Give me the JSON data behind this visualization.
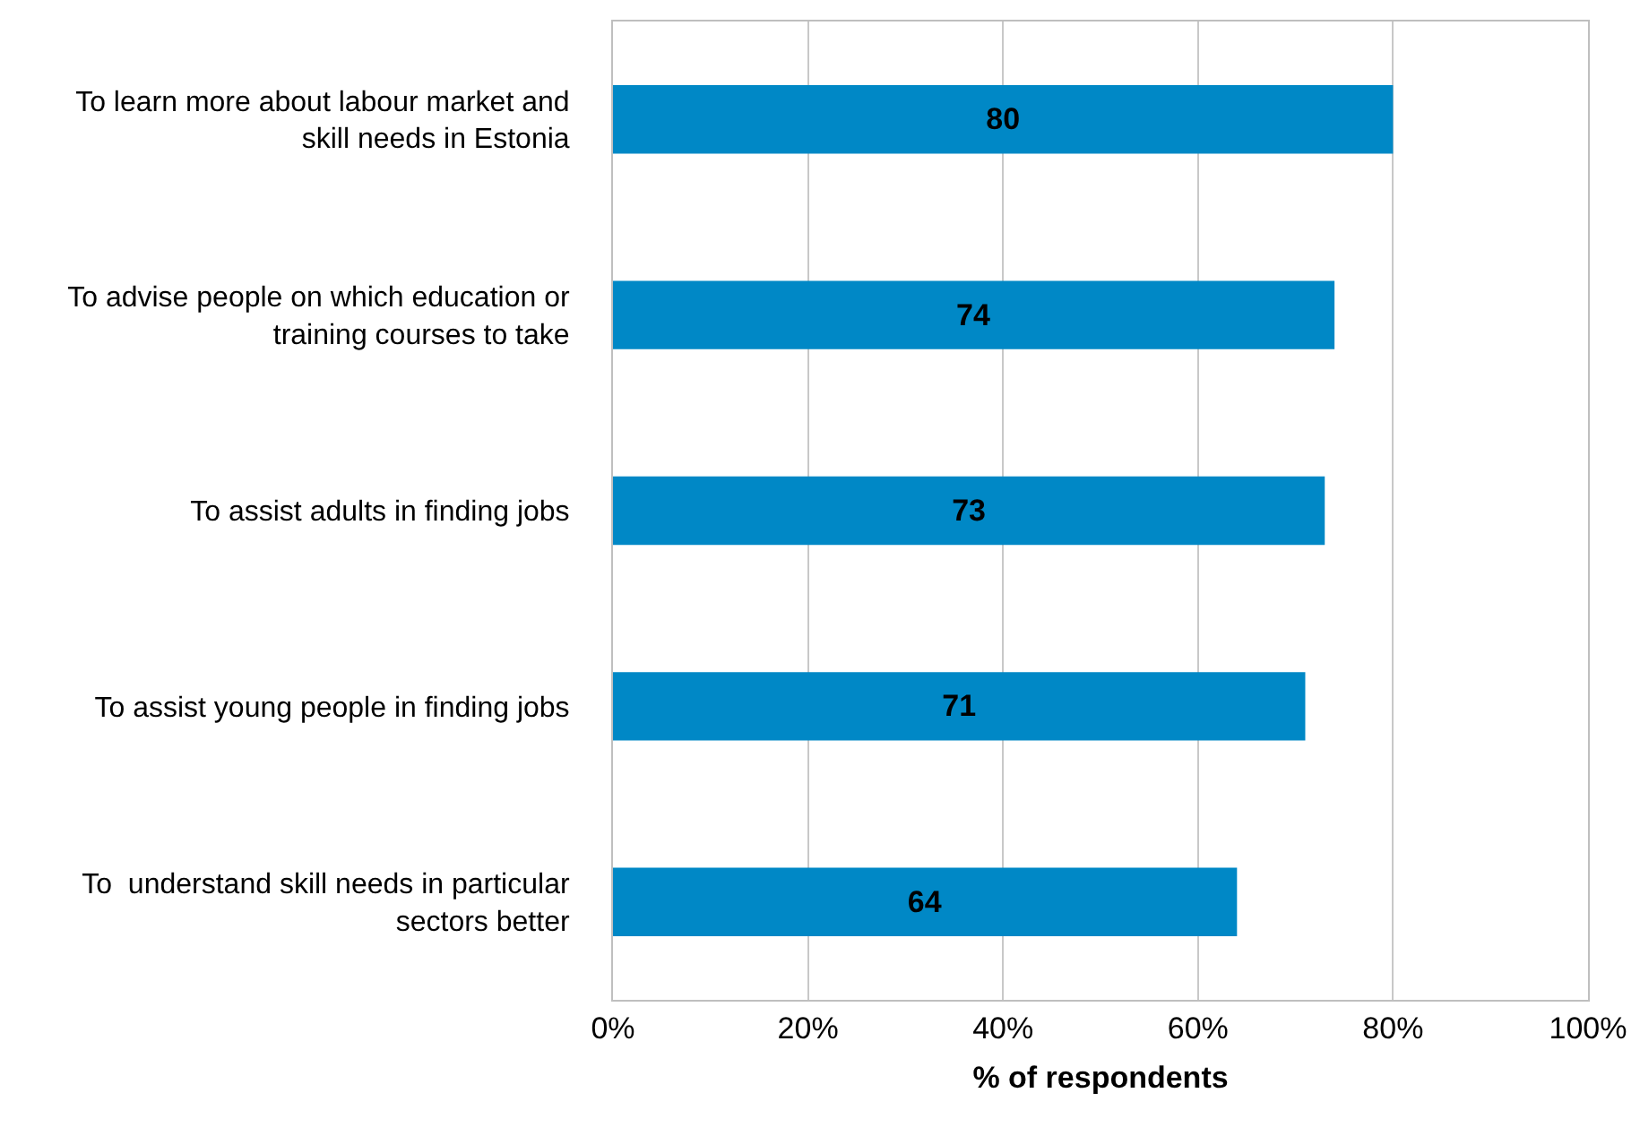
{
  "chart_data": {
    "type": "bar",
    "orientation": "horizontal",
    "xlabel": "% of respondents",
    "categories": [
      "To learn more about labour market and skill needs in Estonia",
      "To advise people on which education or training courses to take",
      "To assist adults in finding jobs",
      "To assist young people in finding jobs",
      "To  understand skill needs in particular sectors better"
    ],
    "values": [
      80,
      74,
      73,
      71,
      64
    ],
    "color": "#0088c6",
    "data_labels": true,
    "grid": "x",
    "legend": false,
    "xlim": [
      0,
      100
    ],
    "xticks": [
      {
        "value": 0,
        "label": "0%"
      },
      {
        "value": 20,
        "label": "20%"
      },
      {
        "value": 40,
        "label": "40%"
      },
      {
        "value": 60,
        "label": "60%"
      },
      {
        "value": 80,
        "label": "80%"
      },
      {
        "value": 100,
        "label": "100%"
      }
    ]
  }
}
